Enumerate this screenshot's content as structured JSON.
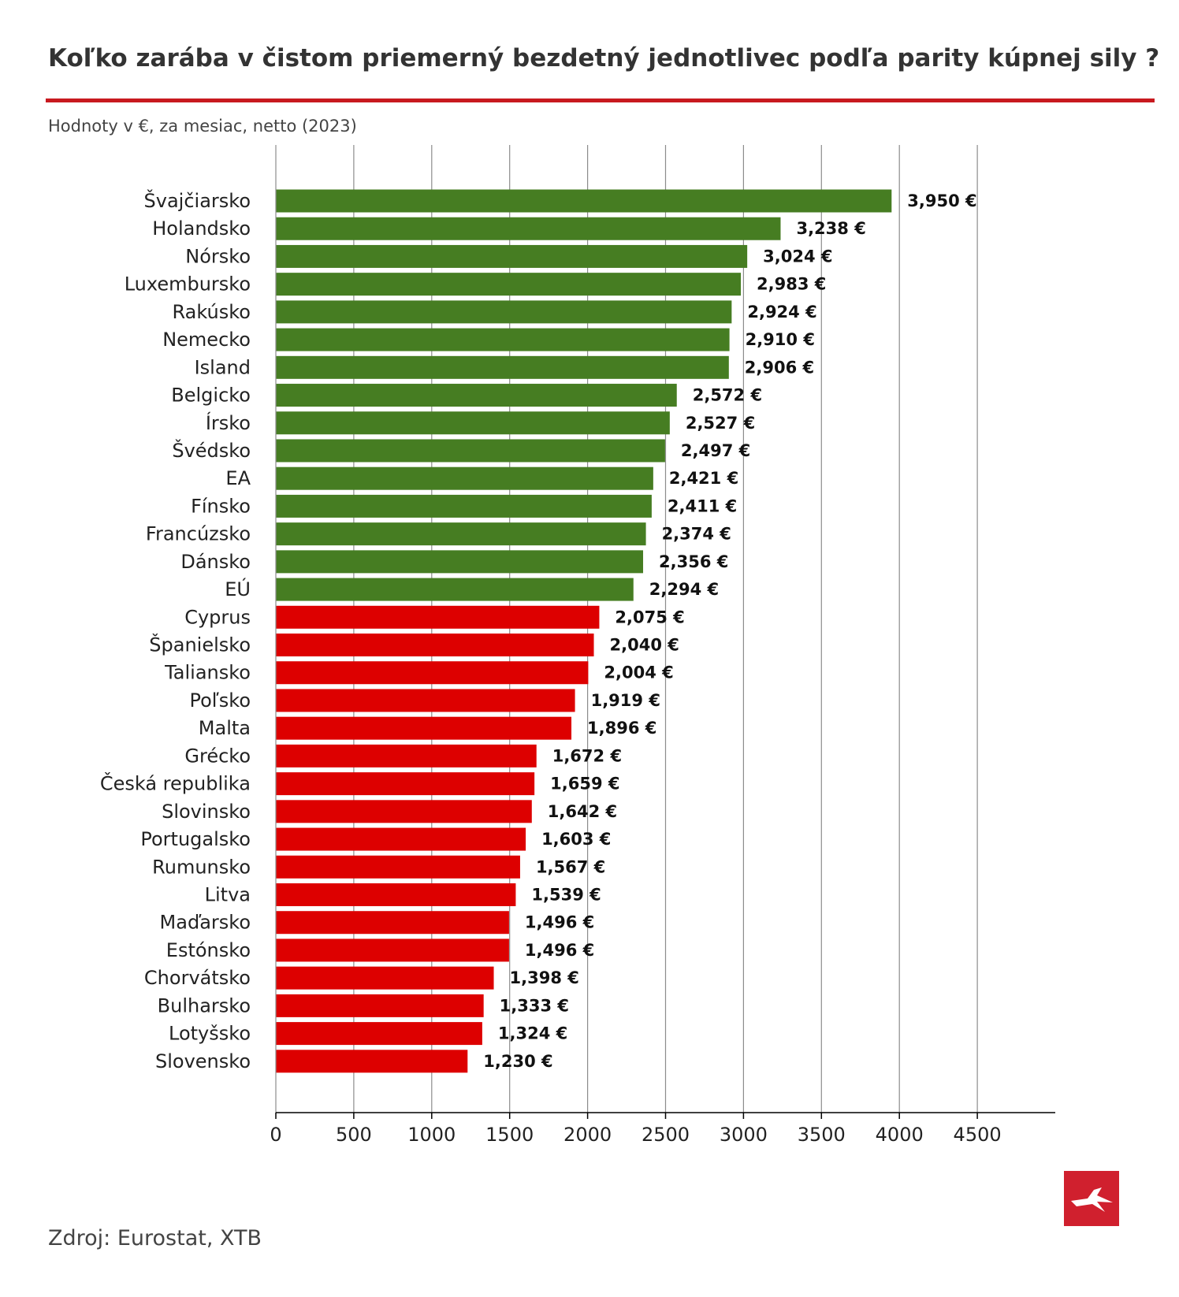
{
  "title": "Koľko zarába v čistom priemerný bezdetný jednotlivec podľa parity kúpnej sily ?",
  "subtitle": "Hodnoty v €, za mesiac, netto (2023)",
  "source": "Zdroj: Eurostat, XTB",
  "colors": {
    "accent": "#c8191f",
    "above_eu": "#467d22",
    "below_eu": "#dd0000",
    "logo": "#d0202e"
  },
  "logo_icon": "xtb-logo-icon",
  "chart_data": {
    "type": "bar",
    "orientation": "horizontal",
    "value_suffix": " €",
    "categories": [
      "Švajčiarsko",
      "Holandsko",
      "Nórsko",
      "Luxembursko",
      "Rakúsko",
      "Nemecko",
      "Island",
      "Belgicko",
      "Írsko",
      "Švédsko",
      "EA",
      "Fínsko",
      "Francúzsko",
      "Dánsko",
      "EÚ",
      "Cyprus",
      "Španielsko",
      "Taliansko",
      "Poľsko",
      "Malta",
      "Grécko",
      "Česká republika",
      "Slovinsko",
      "Portugalsko",
      "Rumunsko",
      "Litva",
      "Maďarsko",
      "Estónsko",
      "Chorvátsko",
      "Bulharsko",
      "Lotyšsko",
      "Slovensko"
    ],
    "values": [
      3950,
      3238,
      3024,
      2983,
      2924,
      2910,
      2906,
      2572,
      2527,
      2497,
      2421,
      2411,
      2374,
      2356,
      2294,
      2075,
      2040,
      2004,
      1919,
      1896,
      1672,
      1659,
      1642,
      1603,
      1567,
      1539,
      1496,
      1496,
      1398,
      1333,
      1324,
      1230
    ],
    "value_labels": [
      "3,950 €",
      "3,238 €",
      "3,024 €",
      "2,983 €",
      "2,924 €",
      "2,910 €",
      "2,906 €",
      "2,572 €",
      "2,527 €",
      "2,497 €",
      "2,421 €",
      "2,411 €",
      "2,374 €",
      "2,356 €",
      "2,294 €",
      "2,075 €",
      "2,040 €",
      "2,004 €",
      "1,919 €",
      "1,896 €",
      "1,672 €",
      "1,659 €",
      "1,642 €",
      "1,603 €",
      "1,567 €",
      "1,539 €",
      "1,496 €",
      "1,496 €",
      "1,398 €",
      "1,333 €",
      "1,324 €",
      "1,230 €"
    ],
    "bar_colors": [
      "#467d22",
      "#467d22",
      "#467d22",
      "#467d22",
      "#467d22",
      "#467d22",
      "#467d22",
      "#467d22",
      "#467d22",
      "#467d22",
      "#467d22",
      "#467d22",
      "#467d22",
      "#467d22",
      "#467d22",
      "#dd0000",
      "#dd0000",
      "#dd0000",
      "#dd0000",
      "#dd0000",
      "#dd0000",
      "#dd0000",
      "#dd0000",
      "#dd0000",
      "#dd0000",
      "#dd0000",
      "#dd0000",
      "#dd0000",
      "#dd0000",
      "#dd0000",
      "#dd0000",
      "#dd0000"
    ],
    "xticks": [
      0,
      500,
      1000,
      1500,
      2000,
      2500,
      3000,
      3500,
      4000,
      4500
    ],
    "xlim": [
      0,
      5000
    ],
    "xlabel": "",
    "ylabel": "",
    "grid": "vertical"
  }
}
